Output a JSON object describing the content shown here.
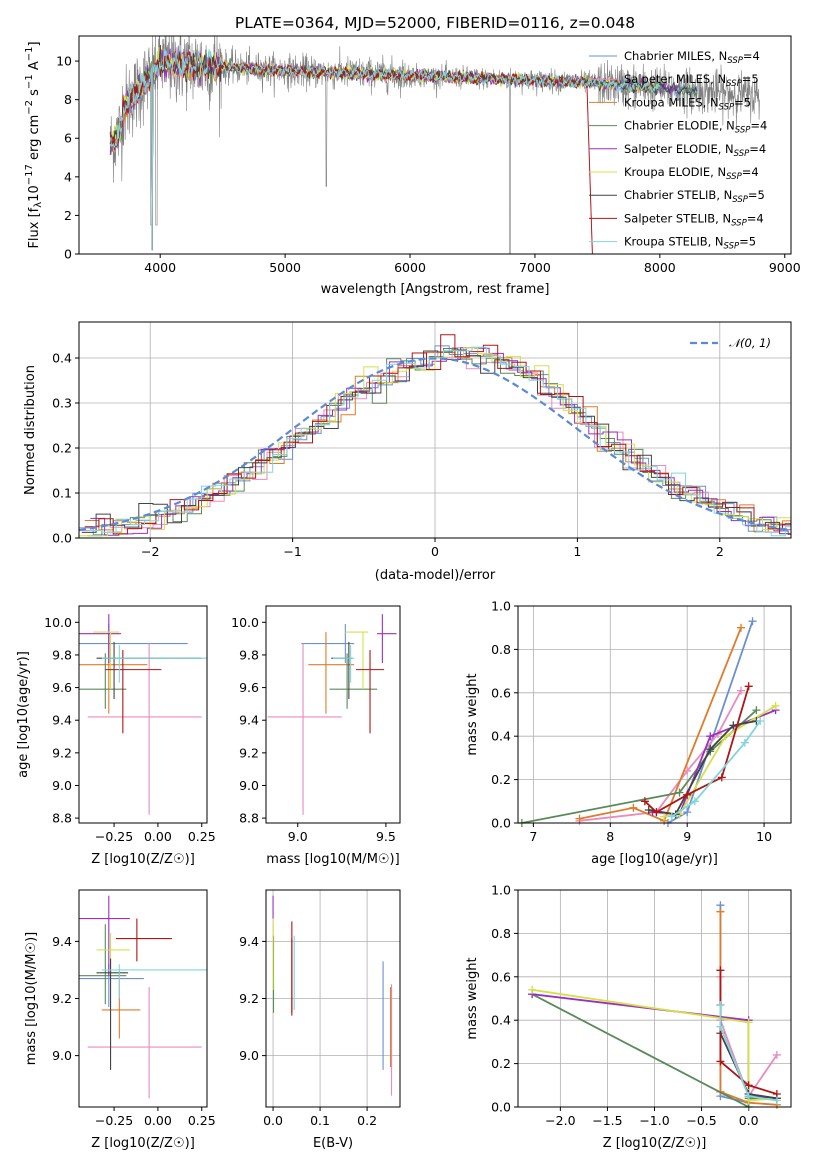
{
  "figure": {
    "title": "PLATE=0364, MJD=52000, FIBERID=0116, z=0.048"
  },
  "legend": {
    "spectrum": [
      {
        "name": "Chabrier MILES, N",
        "sub": "SSP",
        "tail": "=4",
        "color": "#6b8fd6"
      },
      {
        "name": "Salpeter MILES, N",
        "sub": "SSP",
        "tail": "=5",
        "color": "#e98bbd"
      },
      {
        "name": "Kroupa MILES, N",
        "sub": "SSP",
        "tail": "=5",
        "color": "#e07b2a"
      },
      {
        "name": "Chabrier ELODIE, N",
        "sub": "SSP",
        "tail": "=4",
        "color": "#5a8a5a"
      },
      {
        "name": "Salpeter ELODIE, N",
        "sub": "SSP",
        "tail": "=4",
        "color": "#9b30c0"
      },
      {
        "name": "Kroupa ELODIE, N",
        "sub": "SSP",
        "tail": "=4",
        "color": "#d4e04a"
      },
      {
        "name": "Chabrier STELIB, N",
        "sub": "SSP",
        "tail": "=5",
        "color": "#444444"
      },
      {
        "name": "Salpeter STELIB, N",
        "sub": "SSP",
        "tail": "=4",
        "color": "#b01515"
      },
      {
        "name": "Kroupa STELIB, N",
        "sub": "SSP",
        "tail": "=5",
        "color": "#7fd6dc"
      }
    ],
    "hist": {
      "label": "𝒩(0, 1)",
      "color": "#5a8ad6"
    }
  },
  "chart_data": [
    {
      "id": "spectrum",
      "type": "line",
      "title": "PLATE=0364, MJD=52000, FIBERID=0116, z=0.048",
      "xlabel": "wavelength [Angstrom, rest frame]",
      "ylabel_parts": [
        "Flux [f",
        "λ",
        "10",
        "−17",
        " erg cm",
        "−2",
        " s",
        "−1",
        " A",
        "−1",
        "]"
      ],
      "xlim": [
        3350,
        9050
      ],
      "ylim": [
        0,
        11.3
      ],
      "xticks": [
        4000,
        5000,
        6000,
        7000,
        8000,
        9000
      ],
      "yticks": [
        0,
        2,
        4,
        6,
        8,
        10
      ],
      "series_x_range": [
        3600,
        8800
      ],
      "model_x_range": [
        3600,
        8300
      ]
    },
    {
      "id": "residual-hist",
      "type": "step",
      "xlabel": "(data-model)/error",
      "ylabel": "Normed distribution",
      "xlim": [
        -2.5,
        2.5
      ],
      "ylim": [
        0,
        0.48
      ],
      "xticks": [
        -2,
        -1,
        0,
        1,
        2
      ],
      "yticks": [
        0.0,
        0.1,
        0.2,
        0.3,
        0.4
      ],
      "bin_width": 0.1,
      "reference": {
        "type": "normal",
        "mean": 0,
        "sigma": 1
      }
    },
    {
      "id": "age-vs-z",
      "type": "errorbar",
      "xlabel": "Z [log10(Z/Z☉)]",
      "ylabel": "age  [log10(age/yr)]",
      "xlim": [
        -0.45,
        0.28
      ],
      "ylim": [
        8.77,
        10.1
      ],
      "xticks": [
        -0.25,
        0.0,
        0.25
      ],
      "yticks": [
        8.8,
        9.0,
        9.2,
        9.4,
        9.6,
        9.8,
        10.0
      ],
      "points": [
        {
          "x": -0.28,
          "xerr": [
            0.17,
            0.45
          ],
          "y": 9.87,
          "yerr": [
            0.12,
            0.12
          ],
          "color": "#6b8fd6"
        },
        {
          "x": -0.05,
          "xerr": [
            0.35,
            0.3
          ],
          "y": 9.42,
          "yerr": [
            0.6,
            0.45
          ],
          "color": "#e98bbd"
        },
        {
          "x": -0.28,
          "xerr": [
            0.17,
            0.22
          ],
          "y": 9.74,
          "yerr": [
            0.3,
            0.2
          ],
          "color": "#e07b2a"
        },
        {
          "x": -0.3,
          "xerr": [
            0.15,
            0.12
          ],
          "y": 9.59,
          "yerr": [
            0.12,
            0.22
          ],
          "color": "#5a8a5a"
        },
        {
          "x": -0.28,
          "xerr": [
            0.17,
            0.07
          ],
          "y": 9.93,
          "yerr": [
            0.18,
            0.12
          ],
          "color": "#9b30c0"
        },
        {
          "x": -0.27,
          "xerr": [
            0.1,
            0.05
          ],
          "y": 9.94,
          "yerr": [
            0.35,
            0.0
          ],
          "color": "#d4e04a"
        },
        {
          "x": -0.25,
          "xerr": [
            0.1,
            0.5
          ],
          "y": 9.78,
          "yerr": [
            0.25,
            0.1
          ],
          "color": "#444444"
        },
        {
          "x": -0.2,
          "xerr": [
            0.1,
            0.22
          ],
          "y": 9.71,
          "yerr": [
            0.39,
            0.12
          ],
          "color": "#b01515"
        },
        {
          "x": -0.22,
          "xerr": [
            0.1,
            0.5
          ],
          "y": 9.78,
          "yerr": [
            0.15,
            0.08
          ],
          "color": "#7fd6dc"
        }
      ]
    },
    {
      "id": "age-vs-mass",
      "type": "errorbar",
      "xlabel": "mass [log10(M/M☉)]",
      "ylabel": "",
      "xlim": [
        8.82,
        9.58
      ],
      "ylim": [
        8.77,
        10.1
      ],
      "xticks": [
        9.0,
        9.5
      ],
      "yticks": [
        8.8,
        9.0,
        9.2,
        9.4,
        9.6,
        9.8,
        10.0
      ],
      "points": [
        {
          "x": 9.27,
          "xerr": [
            0.25,
            0.05
          ],
          "y": 9.87,
          "yerr": [
            0.12,
            0.12
          ],
          "color": "#6b8fd6"
        },
        {
          "x": 9.03,
          "xerr": [
            0.2,
            0.22
          ],
          "y": 9.42,
          "yerr": [
            0.6,
            0.45
          ],
          "color": "#e98bbd"
        },
        {
          "x": 9.16,
          "xerr": [
            0.1,
            0.16
          ],
          "y": 9.74,
          "yerr": [
            0.3,
            0.2
          ],
          "color": "#e07b2a"
        },
        {
          "x": 9.28,
          "xerr": [
            0.1,
            0.17
          ],
          "y": 9.59,
          "yerr": [
            0.12,
            0.22
          ],
          "color": "#5a8a5a"
        },
        {
          "x": 9.48,
          "xerr": [
            0.03,
            0.08
          ],
          "y": 9.93,
          "yerr": [
            0.18,
            0.12
          ],
          "color": "#9b30c0"
        },
        {
          "x": 9.37,
          "xerr": [
            0.1,
            0.03
          ],
          "y": 9.94,
          "yerr": [
            0.35,
            0.0
          ],
          "color": "#d4e04a"
        },
        {
          "x": 9.29,
          "xerr": [
            0.1,
            0.02
          ],
          "y": 9.78,
          "yerr": [
            0.25,
            0.1
          ],
          "color": "#444444"
        },
        {
          "x": 9.41,
          "xerr": [
            0.08,
            0.08
          ],
          "y": 9.71,
          "yerr": [
            0.39,
            0.12
          ],
          "color": "#b01515"
        },
        {
          "x": 9.3,
          "xerr": [
            0.1,
            0.02
          ],
          "y": 9.78,
          "yerr": [
            0.15,
            0.08
          ],
          "color": "#7fd6dc"
        }
      ]
    },
    {
      "id": "weight-vs-age",
      "type": "line",
      "xlabel": "age  [log10(age/yr)]",
      "ylabel": "mass weight",
      "xlim": [
        6.8,
        10.35
      ],
      "ylim": [
        0,
        1.0
      ],
      "xticks": [
        7,
        8,
        9,
        10
      ],
      "yticks": [
        0.0,
        0.2,
        0.4,
        0.6,
        0.8,
        1.0
      ],
      "series": [
        {
          "color": "#6b8fd6",
          "points": [
            [
              8.75,
              0.0
            ],
            [
              9.0,
              0.05
            ],
            [
              9.85,
              0.93
            ]
          ]
        },
        {
          "color": "#e98bbd",
          "points": [
            [
              7.6,
              0.01
            ],
            [
              8.6,
              0.05
            ],
            [
              9.0,
              0.24
            ],
            [
              9.4,
              0.41
            ],
            [
              9.7,
              0.61
            ]
          ]
        },
        {
          "color": "#e07b2a",
          "points": [
            [
              7.6,
              0.02
            ],
            [
              8.3,
              0.07
            ],
            [
              8.7,
              0.01
            ],
            [
              9.7,
              0.9
            ]
          ]
        },
        {
          "color": "#5a8a5a",
          "points": [
            [
              6.85,
              0.0
            ],
            [
              8.9,
              0.14
            ],
            [
              9.3,
              0.33
            ],
            [
              9.9,
              0.52
            ]
          ]
        },
        {
          "color": "#9b30c0",
          "points": [
            [
              8.55,
              0.05
            ],
            [
              8.9,
              0.04
            ],
            [
              9.3,
              0.4
            ],
            [
              10.15,
              0.52
            ]
          ]
        },
        {
          "color": "#d4e04a",
          "points": [
            [
              8.7,
              0.03
            ],
            [
              8.9,
              0.04
            ],
            [
              9.5,
              0.4
            ],
            [
              10.15,
              0.54
            ]
          ]
        },
        {
          "color": "#444444",
          "points": [
            [
              8.5,
              0.06
            ],
            [
              8.85,
              0.04
            ],
            [
              9.3,
              0.34
            ],
            [
              9.6,
              0.45
            ],
            [
              9.9,
              0.47
            ]
          ]
        },
        {
          "color": "#b01515",
          "points": [
            [
              8.45,
              0.1
            ],
            [
              8.6,
              0.05
            ],
            [
              9.0,
              0.13
            ],
            [
              9.45,
              0.21
            ],
            [
              9.8,
              0.63
            ]
          ]
        },
        {
          "color": "#7fd6dc",
          "points": [
            [
              8.8,
              0.03
            ],
            [
              9.1,
              0.1
            ],
            [
              9.75,
              0.37
            ],
            [
              9.95,
              0.47
            ]
          ]
        }
      ]
    },
    {
      "id": "mass-vs-z",
      "type": "errorbar",
      "xlabel": "Z [log10(Z/Z☉)]",
      "ylabel": "mass [log10(M/M☉)]",
      "xlim": [
        -0.45,
        0.28
      ],
      "ylim": [
        8.82,
        9.58
      ],
      "xticks": [
        -0.25,
        0.0,
        0.25
      ],
      "yticks": [
        9.0,
        9.2,
        9.4
      ],
      "points": [
        {
          "x": -0.28,
          "xerr": [
            0.17,
            0.2
          ],
          "y": 9.27,
          "yerr": [
            0.1,
            0.05
          ],
          "color": "#6b8fd6"
        },
        {
          "x": -0.05,
          "xerr": [
            0.35,
            0.3
          ],
          "y": 9.03,
          "yerr": [
            0.18,
            0.21
          ],
          "color": "#e98bbd"
        },
        {
          "x": -0.22,
          "xerr": [
            0.1,
            0.12
          ],
          "y": 9.16,
          "yerr": [
            0.1,
            0.14
          ],
          "color": "#e07b2a"
        },
        {
          "x": -0.3,
          "xerr": [
            0.15,
            0.12
          ],
          "y": 9.28,
          "yerr": [
            0.1,
            0.18
          ],
          "color": "#5a8a5a"
        },
        {
          "x": -0.28,
          "xerr": [
            0.17,
            0.12
          ],
          "y": 9.48,
          "yerr": [
            0.2,
            0.08
          ],
          "color": "#9b30c0"
        },
        {
          "x": -0.27,
          "xerr": [
            0.08,
            0.11
          ],
          "y": 9.37,
          "yerr": [
            0.1,
            0.06
          ],
          "color": "#d4e04a"
        },
        {
          "x": -0.27,
          "xerr": [
            0.08,
            0.1
          ],
          "y": 9.29,
          "yerr": [
            0.34,
            0.05
          ],
          "color": "#444444"
        },
        {
          "x": -0.12,
          "xerr": [
            0.12,
            0.2
          ],
          "y": 9.41,
          "yerr": [
            0.08,
            0.07
          ],
          "color": "#b01515"
        },
        {
          "x": -0.22,
          "xerr": [
            0.1,
            0.5
          ],
          "y": 9.3,
          "yerr": [
            0.1,
            0.02
          ],
          "color": "#7fd6dc"
        }
      ]
    },
    {
      "id": "mass-vs-ebv",
      "type": "errorbar",
      "xlabel": "E(B-V)",
      "ylabel": "",
      "xlim": [
        -0.015,
        0.27
      ],
      "ylim": [
        8.82,
        9.58
      ],
      "xticks": [
        0.0,
        0.1,
        0.2
      ],
      "yticks": [
        9.0,
        9.2,
        9.4
      ],
      "points": [
        {
          "x": 0.234,
          "xerr": [
            0,
            0
          ],
          "y": 9.15,
          "yerr": [
            0.2,
            0.18
          ],
          "color": "#6b8fd6"
        },
        {
          "x": 0.252,
          "xerr": [
            0,
            0
          ],
          "y": 9.1,
          "yerr": [
            0.24,
            0.15
          ],
          "color": "#e98bbd"
        },
        {
          "x": 0.25,
          "xerr": [
            0,
            0
          ],
          "y": 9.1,
          "yerr": [
            0.14,
            0.14
          ],
          "color": "#e07b2a"
        },
        {
          "x": 0.001,
          "xerr": [
            0,
            0
          ],
          "y": 9.27,
          "yerr": [
            0.12,
            0.15
          ],
          "color": "#5a8a5a"
        },
        {
          "x": 0.0,
          "xerr": [
            0,
            0
          ],
          "y": 9.47,
          "yerr": [
            0.12,
            0.09
          ],
          "color": "#9b30c0"
        },
        {
          "x": 0.0,
          "xerr": [
            0,
            0
          ],
          "y": 9.36,
          "yerr": [
            0.13,
            0.12
          ],
          "color": "#d4e04a"
        },
        {
          "x": 0.04,
          "xerr": [
            0,
            0
          ],
          "y": 9.28,
          "yerr": [
            0.13,
            0.13
          ],
          "color": "#444444"
        },
        {
          "x": 0.04,
          "xerr": [
            0,
            0
          ],
          "y": 9.3,
          "yerr": [
            0.16,
            0.17
          ],
          "color": "#b01515"
        },
        {
          "x": 0.045,
          "xerr": [
            0,
            0
          ],
          "y": 9.29,
          "yerr": [
            0.13,
            0.13
          ],
          "color": "#7fd6dc"
        }
      ]
    },
    {
      "id": "weight-vs-z",
      "type": "line",
      "xlabel": "Z [log10(Z/Z☉)]",
      "ylabel": "mass weight",
      "xlim": [
        -2.45,
        0.45
      ],
      "ylim": [
        0,
        1.0
      ],
      "xticks": [
        -2.0,
        -1.5,
        -1.0,
        -0.5,
        0.0
      ],
      "yticks": [
        0.0,
        0.2,
        0.4,
        0.6,
        0.8,
        1.0
      ],
      "series": [
        {
          "color": "#6b8fd6",
          "points": [
            [
              -0.3,
              0.93
            ],
            [
              -0.3,
              0.05
            ],
            [
              0.0,
              0.02
            ]
          ]
        },
        {
          "color": "#e98bbd",
          "points": [
            [
              -0.3,
              0.6
            ],
            [
              -0.3,
              0.4
            ],
            [
              0.0,
              0.05
            ],
            [
              0.3,
              0.24
            ]
          ]
        },
        {
          "color": "#e07b2a",
          "points": [
            [
              -0.3,
              0.9
            ],
            [
              -0.3,
              0.07
            ],
            [
              0.0,
              0.02
            ],
            [
              0.3,
              0.01
            ]
          ]
        },
        {
          "color": "#5a8a5a",
          "points": [
            [
              -2.3,
              0.52
            ],
            [
              0.0,
              0.0
            ],
            [
              0.0,
              0.04
            ],
            [
              0.3,
              0.04
            ]
          ]
        },
        {
          "color": "#9b30c0",
          "points": [
            [
              -2.3,
              0.52
            ],
            [
              0.0,
              0.4
            ],
            [
              0.0,
              0.05
            ],
            [
              0.3,
              0.04
            ]
          ]
        },
        {
          "color": "#d4e04a",
          "points": [
            [
              -2.3,
              0.54
            ],
            [
              0.0,
              0.39
            ],
            [
              0.0,
              0.03
            ],
            [
              0.3,
              0.04
            ]
          ]
        },
        {
          "color": "#444444",
          "points": [
            [
              -0.3,
              0.47
            ],
            [
              -0.3,
              0.34
            ],
            [
              0.0,
              0.06
            ],
            [
              0.3,
              0.04
            ]
          ]
        },
        {
          "color": "#b01515",
          "points": [
            [
              -0.3,
              0.63
            ],
            [
              -0.3,
              0.21
            ],
            [
              0.0,
              0.1
            ],
            [
              0.3,
              0.06
            ]
          ]
        },
        {
          "color": "#7fd6dc",
          "points": [
            [
              -0.3,
              0.47
            ],
            [
              -0.3,
              0.37
            ],
            [
              0.0,
              0.05
            ],
            [
              0.3,
              0.03
            ]
          ]
        }
      ]
    }
  ]
}
